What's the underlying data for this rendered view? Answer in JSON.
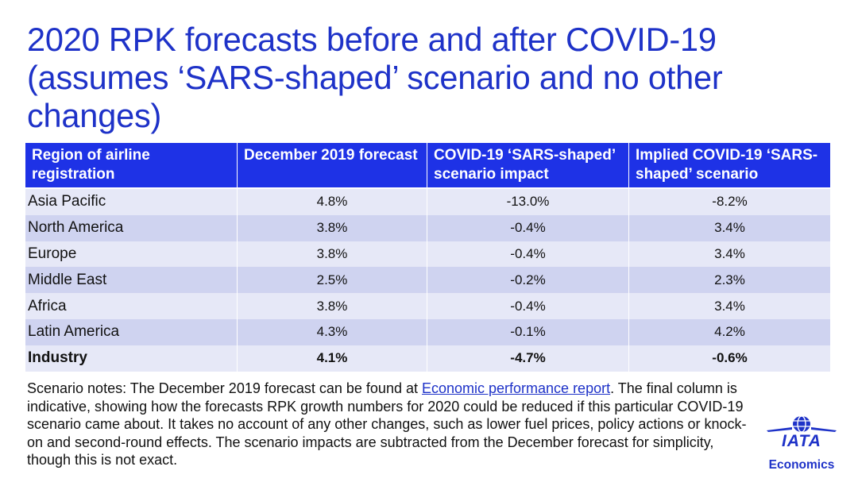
{
  "title": "2020 RPK forecasts before and after COVID-19 (assumes ‘SARS-shaped’ scenario and no other changes)",
  "table": {
    "headers": [
      "Region of airline registration",
      "December 2019 forecast",
      "COVID-19 ‘SARS-shaped’ scenario impact",
      "Implied COVID-19 ‘SARS-shaped’ scenario"
    ],
    "rows": [
      {
        "region": "Asia Pacific",
        "dec2019": "4.8%",
        "impact": "-13.0%",
        "implied": "-8.2%"
      },
      {
        "region": "North America",
        "dec2019": "3.8%",
        "impact": "-0.4%",
        "implied": "3.4%"
      },
      {
        "region": "Europe",
        "dec2019": "3.8%",
        "impact": "-0.4%",
        "implied": "3.4%"
      },
      {
        "region": "Middle East",
        "dec2019": "2.5%",
        "impact": "-0.2%",
        "implied": "2.3%"
      },
      {
        "region": "Africa",
        "dec2019": "3.8%",
        "impact": "-0.4%",
        "implied": "3.4%"
      },
      {
        "region": "Latin America",
        "dec2019": "4.3%",
        "impact": "-0.1%",
        "implied": "4.2%"
      },
      {
        "region": "Industry",
        "dec2019": "4.1%",
        "impact": "-4.7%",
        "implied": "-0.6%"
      }
    ]
  },
  "notes": {
    "before_link": "Scenario notes: The December 2019 forecast can be found at ",
    "link_text": "Economic performance report",
    "after_link": ". The final column is indicative, showing how the forecasts RPK growth numbers for 2020 could be reduced if this particular COVID-19 scenario came about. It takes no account of any other changes, such as lower fuel prices, policy actions or knock-on and second-round effects. The scenario impacts are subtracted from the December forecast for simplicity, though this is not exact."
  },
  "logo": {
    "brand": "IATA",
    "subtitle": "Economics",
    "icon": "globe-icon"
  },
  "colors": {
    "accent": "#1e32c8",
    "header_bg": "#1e32e6",
    "row_light": "#e6e8f7",
    "row_dark": "#cfd3f0"
  }
}
